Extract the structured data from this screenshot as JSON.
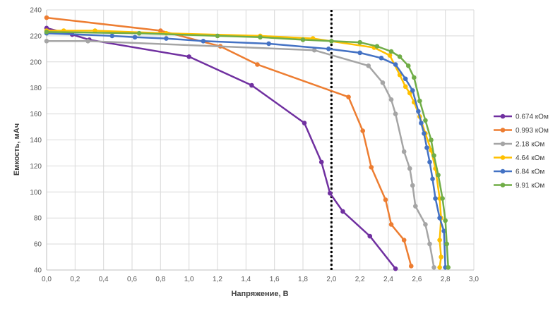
{
  "chart_data": {
    "type": "line",
    "xlabel": "Напряжение, В",
    "ylabel": "Емкость,  мАч",
    "xlim": [
      0,
      3
    ],
    "ylim": [
      40,
      240
    ],
    "x_ticks": [
      "0,0",
      "0,2",
      "0,4",
      "0,6",
      "0,8",
      "1,0",
      "1,2",
      "1,4",
      "1,6",
      "1,8",
      "2,0",
      "2,2",
      "2,4",
      "2,6",
      "2,8",
      "3,0"
    ],
    "y_ticks": [
      "40",
      "60",
      "80",
      "100",
      "120",
      "140",
      "160",
      "180",
      "200",
      "220",
      "240"
    ],
    "grid": true,
    "legend_position": "right",
    "reference_line": {
      "x": 2.0,
      "style": "dotted",
      "color": "#000000"
    },
    "series": [
      {
        "name": "0.674 кОм",
        "color": "#7030a0",
        "points": [
          [
            0.0,
            226
          ],
          [
            0.18,
            221
          ],
          [
            0.3,
            217
          ],
          [
            1.0,
            204
          ],
          [
            1.44,
            182
          ],
          [
            1.81,
            153
          ],
          [
            1.93,
            123
          ],
          [
            1.99,
            99
          ],
          [
            2.08,
            85
          ],
          [
            2.27,
            66
          ],
          [
            2.45,
            41
          ]
        ]
      },
      {
        "name": "0.993 кОм",
        "color": "#ed7d31",
        "points": [
          [
            0.0,
            234
          ],
          [
            0.8,
            224
          ],
          [
            1.22,
            212
          ],
          [
            1.48,
            198
          ],
          [
            2.12,
            173
          ],
          [
            2.22,
            147
          ],
          [
            2.28,
            119
          ],
          [
            2.38,
            94
          ],
          [
            2.42,
            75
          ],
          [
            2.51,
            63
          ],
          [
            2.56,
            43
          ]
        ]
      },
      {
        "name": "2.18 кОм",
        "color": "#a5a5a5",
        "points": [
          [
            0.0,
            216
          ],
          [
            0.29,
            216
          ],
          [
            1.88,
            209
          ],
          [
            2.26,
            197
          ],
          [
            2.36,
            184
          ],
          [
            2.42,
            171
          ],
          [
            2.45,
            160
          ],
          [
            2.51,
            131
          ],
          [
            2.55,
            118
          ],
          [
            2.57,
            105
          ],
          [
            2.59,
            89
          ],
          [
            2.66,
            75
          ],
          [
            2.69,
            60
          ],
          [
            2.72,
            42
          ]
        ]
      },
      {
        "name": "4.64 кОм",
        "color": "#ffc000",
        "points": [
          [
            0.0,
            224
          ],
          [
            0.12,
            224
          ],
          [
            0.34,
            224
          ],
          [
            0.84,
            222
          ],
          [
            1.5,
            220
          ],
          [
            1.87,
            218
          ],
          [
            2.3,
            211
          ],
          [
            2.41,
            205
          ],
          [
            2.48,
            190
          ],
          [
            2.52,
            181
          ],
          [
            2.55,
            176
          ],
          [
            2.58,
            169
          ],
          [
            2.62,
            158
          ],
          [
            2.66,
            145
          ],
          [
            2.7,
            132
          ],
          [
            2.73,
            118
          ],
          [
            2.76,
            95
          ],
          [
            2.77,
            80
          ],
          [
            2.76,
            63
          ],
          [
            2.77,
            50
          ],
          [
            2.76,
            42
          ]
        ]
      },
      {
        "name": "6.84 кОм",
        "color": "#4472c4",
        "points": [
          [
            0.0,
            222
          ],
          [
            0.46,
            220
          ],
          [
            0.62,
            219
          ],
          [
            0.84,
            218
          ],
          [
            1.1,
            216
          ],
          [
            1.56,
            214
          ],
          [
            1.98,
            210
          ],
          [
            2.2,
            207
          ],
          [
            2.35,
            203
          ],
          [
            2.45,
            198
          ],
          [
            2.52,
            187
          ],
          [
            2.57,
            178
          ],
          [
            2.61,
            162
          ],
          [
            2.63,
            153
          ],
          [
            2.65,
            145
          ],
          [
            2.67,
            134
          ],
          [
            2.69,
            123
          ],
          [
            2.71,
            110
          ],
          [
            2.73,
            95
          ],
          [
            2.76,
            80
          ],
          [
            2.79,
            70
          ],
          [
            2.8,
            42
          ]
        ]
      },
      {
        "name": "9.91 кОм",
        "color": "#70ad47",
        "points": [
          [
            0.0,
            223
          ],
          [
            0.65,
            222
          ],
          [
            1.2,
            220
          ],
          [
            1.5,
            219
          ],
          [
            1.8,
            217
          ],
          [
            2.0,
            216
          ],
          [
            2.2,
            215
          ],
          [
            2.32,
            212
          ],
          [
            2.42,
            208
          ],
          [
            2.48,
            204
          ],
          [
            2.54,
            197
          ],
          [
            2.58,
            188
          ],
          [
            2.62,
            170
          ],
          [
            2.66,
            155
          ],
          [
            2.7,
            140
          ],
          [
            2.72,
            128
          ],
          [
            2.75,
            113
          ],
          [
            2.78,
            95
          ],
          [
            2.8,
            78
          ],
          [
            2.81,
            60
          ],
          [
            2.82,
            42
          ]
        ]
      }
    ]
  }
}
